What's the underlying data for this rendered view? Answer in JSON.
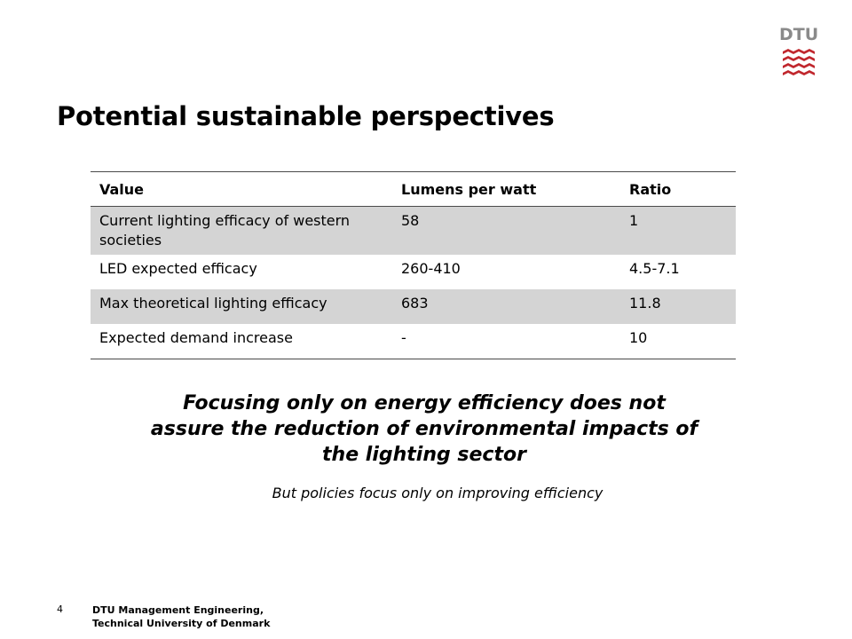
{
  "logo": {
    "text": "DTU"
  },
  "title": "Potential sustainable perspectives",
  "table": {
    "headers": [
      "Value",
      "Lumens per watt",
      "Ratio"
    ],
    "rows": [
      [
        "Current lighting efficacy of western societies",
        "58",
        "1"
      ],
      [
        "LED expected efficacy",
        "260-410",
        "4.5-7.1"
      ],
      [
        "Max theoretical lighting efficacy",
        "683",
        "11.8"
      ],
      [
        "Expected demand increase",
        "-",
        "10"
      ]
    ]
  },
  "statement": {
    "line1": "Focusing only on energy efficiency does not",
    "line2": "assure the reduction of environmental impacts of",
    "line3": "the lighting sector"
  },
  "note": "But policies focus  only on improving efficiency",
  "footer": {
    "page_number": "4",
    "line1": "DTU Management Engineering,",
    "line2": "Technical University of Denmark"
  },
  "colors": {
    "logo_red": "#c0272d",
    "logo_gray": "#8a8a8a",
    "row_shade": "#d4d4d4"
  }
}
